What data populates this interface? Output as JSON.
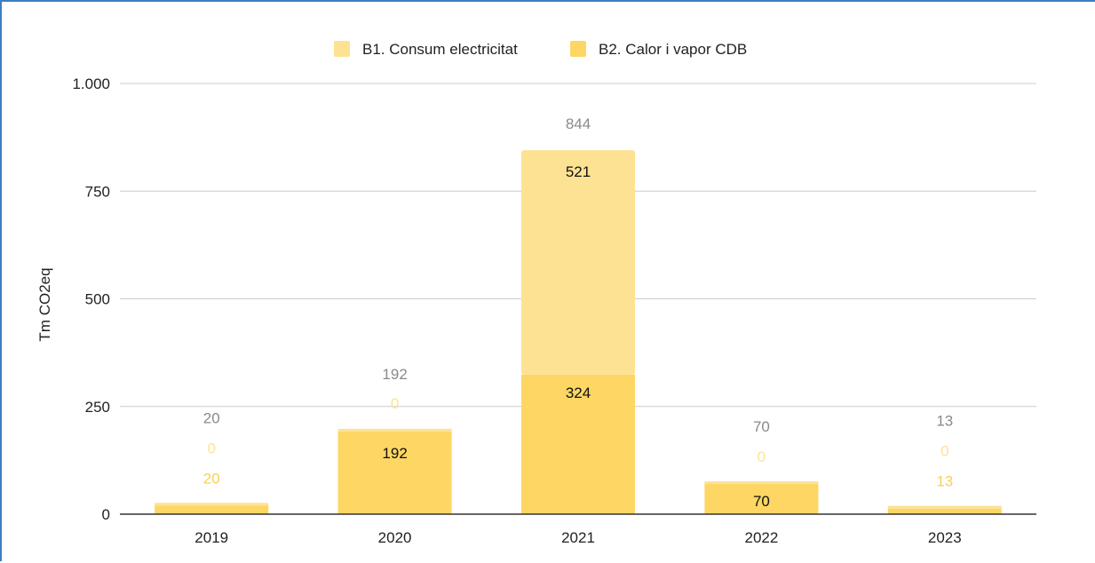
{
  "chart_data": {
    "type": "bar",
    "stacked": true,
    "categories": [
      "2019",
      "2020",
      "2021",
      "2022",
      "2023"
    ],
    "series": [
      {
        "name": "B1. Consum electricitat",
        "color": "#fde293",
        "values": [
          0,
          0,
          521,
          0,
          0
        ],
        "labels": [
          "0",
          "0",
          "521",
          "0",
          "0"
        ]
      },
      {
        "name": "B2. Calor i vapor CDB",
        "color": "#fdd663",
        "values": [
          20,
          192,
          324,
          70,
          13
        ],
        "labels": [
          "20",
          "192",
          "324",
          "70",
          "13"
        ]
      }
    ],
    "totals": [
      20,
      192,
      844,
      70,
      13
    ],
    "total_labels": [
      "20",
      "192",
      "844",
      "70",
      "13"
    ],
    "ylabel": "Tm CO2eq",
    "ylim": [
      0,
      1000
    ],
    "yticks": [
      0,
      250,
      500,
      750,
      1000
    ],
    "ytick_labels": [
      "0",
      "250",
      "500",
      "750",
      "1.000"
    ],
    "grid": true,
    "legend_position": "top"
  }
}
